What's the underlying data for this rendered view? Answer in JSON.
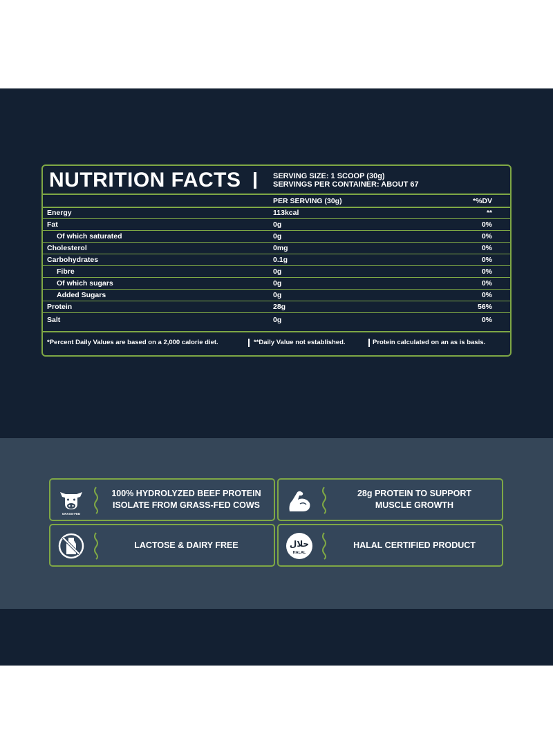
{
  "colors": {
    "dark_navy": "#132032",
    "slate": "#354658",
    "accent_green": "#7fa845",
    "text": "#ffffff"
  },
  "nutrition": {
    "title": "NUTRITION FACTS",
    "serving_size": "SERVING SIZE: 1 SCOOP (30g)",
    "servings_per_container": "SERVINGS PER CONTAINER: ABOUT 67",
    "col_per_serving": "PER SERVING (30g)",
    "col_dv": "*%DV",
    "rows": [
      {
        "name": "Energy",
        "amount": "113kcal",
        "dv": "**"
      },
      {
        "name": "Fat",
        "amount": "0g",
        "dv": "0%"
      },
      {
        "name": "Of which saturated",
        "amount": "0g",
        "dv": "0%"
      },
      {
        "name": "Cholesterol",
        "amount": "0mg",
        "dv": "0%"
      },
      {
        "name": "Carbohydrates",
        "amount": "0.1g",
        "dv": "0%"
      },
      {
        "name": "Fibre",
        "amount": "0g",
        "dv": "0%"
      },
      {
        "name": "Of which sugars",
        "amount": "0g",
        "dv": "0%"
      },
      {
        "name": "Added Sugars",
        "amount": "0g",
        "dv": "0%"
      },
      {
        "name": "Protein",
        "amount": "28g",
        "dv": "56%"
      },
      {
        "name": "Salt",
        "amount": "0g",
        "dv": "0%"
      }
    ],
    "footnotes": [
      "*Percent Daily Values are based on a 2,000 calorie diet.",
      "**Daily Value not established.",
      "Protein calculated on an as is basis."
    ]
  },
  "features": [
    {
      "icon": "cow-icon",
      "icon_caption": "GRASS-FED",
      "text_line1": "100% HYDROLYZED BEEF PROTEIN",
      "text_line2": "ISOLATE FROM GRASS-FED COWS"
    },
    {
      "icon": "flexed-arm-icon",
      "text_line1": "28g PROTEIN TO SUPPORT",
      "text_line2": "MUSCLE GROWTH"
    },
    {
      "icon": "no-milk-bottle-icon",
      "text_line1": "LACTOSE & DAIRY FREE",
      "text_line2": ""
    },
    {
      "icon": "halal-badge-icon",
      "badge_arabic": "حلال",
      "badge_label": "HALAL",
      "text_line1": "HALAL CERTIFIED PRODUCT",
      "text_line2": ""
    }
  ]
}
